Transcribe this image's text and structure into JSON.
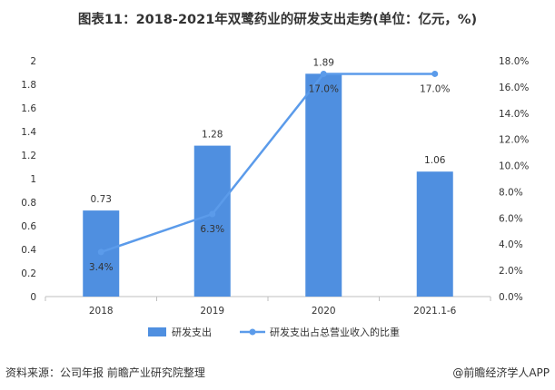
{
  "title": "图表11：2018-2021年双鹭药业的研发支出走势(单位：亿元，%)",
  "footer": {
    "source": "资料来源：公司年报 前瞻产业研究院整理",
    "credit": "@前瞻经济学人APP"
  },
  "colors": {
    "bar": "#4f8fe0",
    "line": "#5b9bea",
    "axis_text": "#333333",
    "axis_line": "#bfbfbf"
  },
  "chart_data": {
    "type": "bar",
    "categories": [
      "2018",
      "2019",
      "2020",
      "2021.1-6"
    ],
    "series": [
      {
        "name": "研发支出",
        "type": "bar",
        "axis": "left",
        "values": [
          0.73,
          1.28,
          1.89,
          1.06
        ],
        "labels": [
          "0.73",
          "1.28",
          "1.89",
          "1.06"
        ]
      },
      {
        "name": "研发支出占总营业收入的比重",
        "type": "line",
        "axis": "right",
        "values": [
          3.4,
          6.3,
          17.0,
          17.0
        ],
        "labels": [
          "3.4%",
          "6.3%",
          "17.0%",
          "17.0%"
        ]
      }
    ],
    "y_left": {
      "ylim": [
        0,
        2
      ],
      "ticks": [
        0,
        0.2,
        0.4,
        0.6,
        0.8,
        1,
        1.2,
        1.4,
        1.6,
        1.8,
        2
      ],
      "tick_labels": [
        "0",
        "0.2",
        "0.4",
        "0.6",
        "0.8",
        "1",
        "1.2",
        "1.4",
        "1.6",
        "1.8",
        "2"
      ]
    },
    "y_right": {
      "ylim": [
        0,
        18
      ],
      "ticks": [
        0,
        2,
        4,
        6,
        8,
        10,
        12,
        14,
        16,
        18
      ],
      "tick_labels": [
        "0.0%",
        "2.0%",
        "4.0%",
        "6.0%",
        "8.0%",
        "10.0%",
        "12.0%",
        "14.0%",
        "16.0%",
        "18.0%"
      ]
    },
    "grid": false,
    "legend_position": "bottom"
  }
}
